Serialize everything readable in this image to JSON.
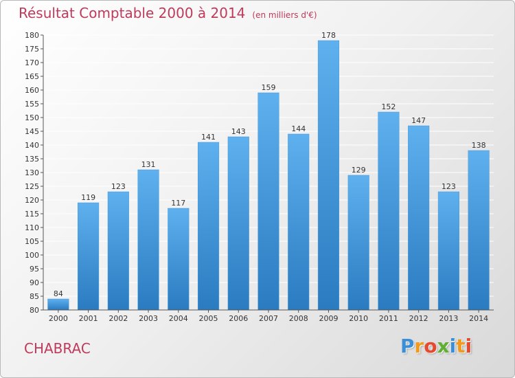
{
  "header": {
    "title": "Résultat Comptable 2000 à 2014",
    "subtitle": "(en milliers d'€)"
  },
  "footer": {
    "commune": "CHABRAC",
    "logo": "Proxiti",
    "logo_letters": [
      "P",
      "r",
      "o",
      "x",
      "i",
      "t",
      "i"
    ]
  },
  "colors": {
    "title": "#c0395a",
    "bar_top": "#5eb0ee",
    "bar_bottom": "#2a7bc0",
    "grid": "#ffffff",
    "axis": "#555555"
  },
  "chart_data": {
    "type": "bar",
    "title": "Résultat Comptable 2000 à 2014",
    "subtitle": "(en milliers d'€)",
    "categories": [
      "2000",
      "2001",
      "2002",
      "2003",
      "2004",
      "2005",
      "2006",
      "2007",
      "2008",
      "2009",
      "2010",
      "2011",
      "2012",
      "2013",
      "2014"
    ],
    "values": [
      84,
      119,
      123,
      131,
      117,
      141,
      143,
      159,
      144,
      178,
      129,
      152,
      147,
      123,
      138
    ],
    "ylim": [
      80,
      180
    ],
    "ytick_step": 5,
    "grid": true,
    "data_labels": true
  }
}
